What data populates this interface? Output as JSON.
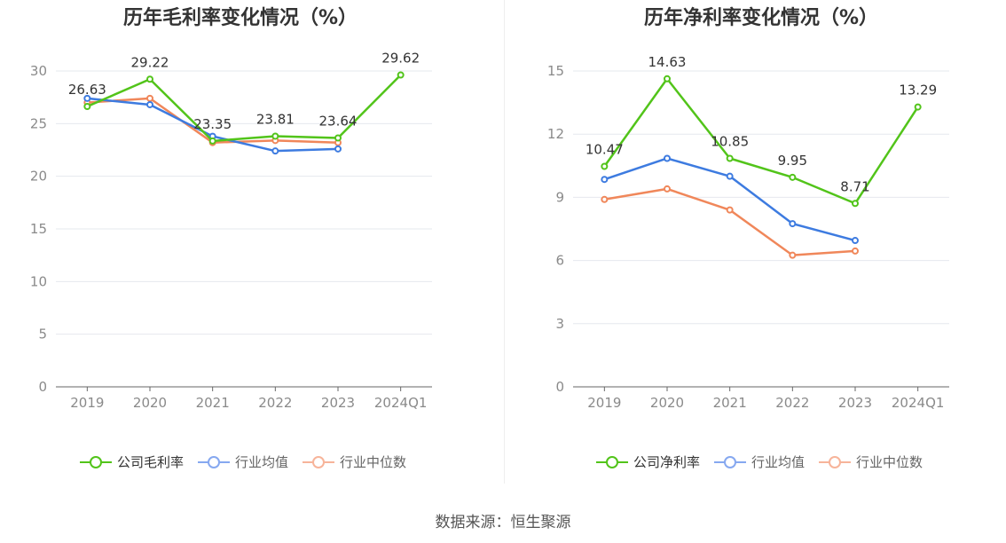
{
  "source_label": "数据来源：恒生聚源",
  "colors": {
    "company": "#52c41a",
    "avg": "#3d7be0",
    "median": "#f0875a",
    "grid": "#e6e8ee",
    "axis": "#666666"
  },
  "legend_colors": {
    "company": "#52c41a",
    "avg": "#86a8f0",
    "median": "#f7b49a"
  },
  "chart_data": [
    {
      "type": "line",
      "title": "历年毛利率变化情况（%）",
      "categories": [
        "2019",
        "2020",
        "2021",
        "2022",
        "2023",
        "2024Q1"
      ],
      "ylim": [
        0,
        30
      ],
      "yticks": [
        0,
        5,
        10,
        15,
        20,
        25,
        30
      ],
      "series": [
        {
          "key": "company",
          "name": "公司毛利率",
          "values": [
            26.63,
            29.22,
            23.35,
            23.81,
            23.64,
            29.62
          ],
          "labels": [
            "26.63",
            "29.22",
            "23.35",
            "23.81",
            "23.64",
            "29.62"
          ]
        },
        {
          "key": "avg",
          "name": "行业均值",
          "values": [
            27.4,
            26.8,
            23.8,
            22.4,
            22.6,
            null
          ]
        },
        {
          "key": "median",
          "name": "行业中位数",
          "values": [
            27.0,
            27.4,
            23.2,
            23.4,
            23.2,
            null
          ]
        }
      ]
    },
    {
      "type": "line",
      "title": "历年净利率变化情况（%）",
      "categories": [
        "2019",
        "2020",
        "2021",
        "2022",
        "2023",
        "2024Q1"
      ],
      "ylim": [
        0,
        15
      ],
      "yticks": [
        0,
        3,
        6,
        9,
        12,
        15
      ],
      "series": [
        {
          "key": "company",
          "name": "公司净利率",
          "values": [
            10.47,
            14.63,
            10.85,
            9.95,
            8.71,
            13.29
          ],
          "labels": [
            "10.47",
            "14.63",
            "10.85",
            "9.95",
            "8.71",
            "13.29"
          ]
        },
        {
          "key": "avg",
          "name": "行业均值",
          "values": [
            9.85,
            10.85,
            10.0,
            7.75,
            6.95,
            null
          ]
        },
        {
          "key": "median",
          "name": "行业中位数",
          "values": [
            8.9,
            9.4,
            8.4,
            6.25,
            6.45,
            null
          ]
        }
      ]
    }
  ]
}
